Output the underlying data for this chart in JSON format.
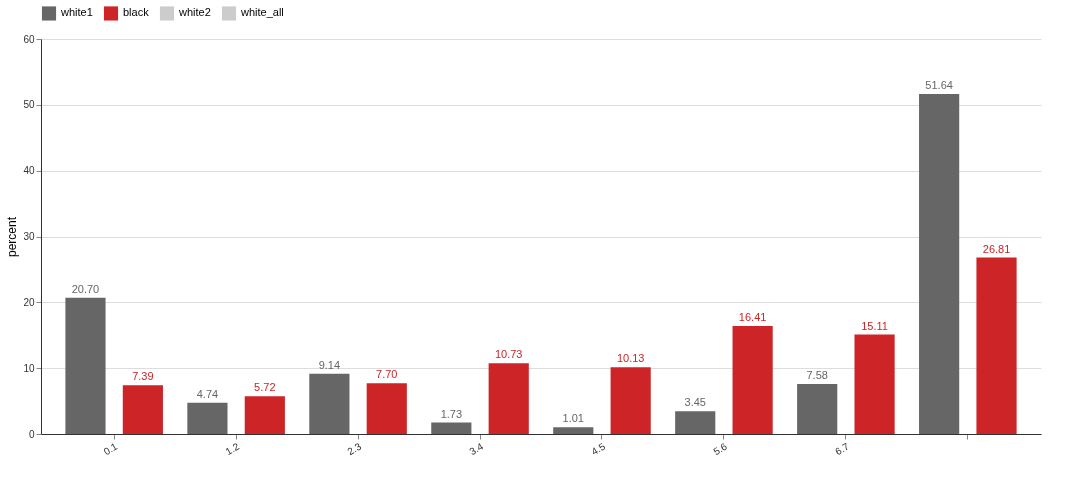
{
  "chart_data": {
    "type": "bar",
    "ylabel": "percent",
    "categories": [
      "0.1",
      "1.2",
      "2.3",
      "3.4",
      "4.5",
      "5.6",
      "6.7",
      null
    ],
    "series": [
      {
        "name": "white1",
        "color": "#666666",
        "values": [
          20.7,
          4.74,
          9.14,
          1.73,
          1.01,
          3.45,
          7.58,
          51.64
        ],
        "value_labels": [
          "20.70",
          "4.74",
          "9.14",
          "1.73",
          "1.01",
          "3.45",
          "7.58",
          "51.64"
        ]
      },
      {
        "name": "black",
        "color": "#cc2427",
        "values": [
          7.39,
          5.72,
          7.7,
          10.73,
          10.13,
          16.41,
          15.11,
          26.81
        ],
        "value_labels": [
          "7.39",
          "5.72",
          "7.70",
          "10.73",
          "10.13",
          "16.41",
          "15.11",
          "26.81"
        ]
      },
      {
        "name": "white2",
        "color": "#cccccc",
        "values": [
          null,
          null,
          null,
          null,
          null,
          null,
          null,
          null
        ]
      },
      {
        "name": "white_all",
        "color": "#cccccc",
        "values": [
          null,
          null,
          null,
          null,
          null,
          null,
          null,
          null
        ]
      }
    ],
    "ylim": [
      0,
      60
    ],
    "yticks": [
      0,
      10,
      20,
      30,
      40,
      50,
      60
    ],
    "grid": "y",
    "legend": "top"
  }
}
